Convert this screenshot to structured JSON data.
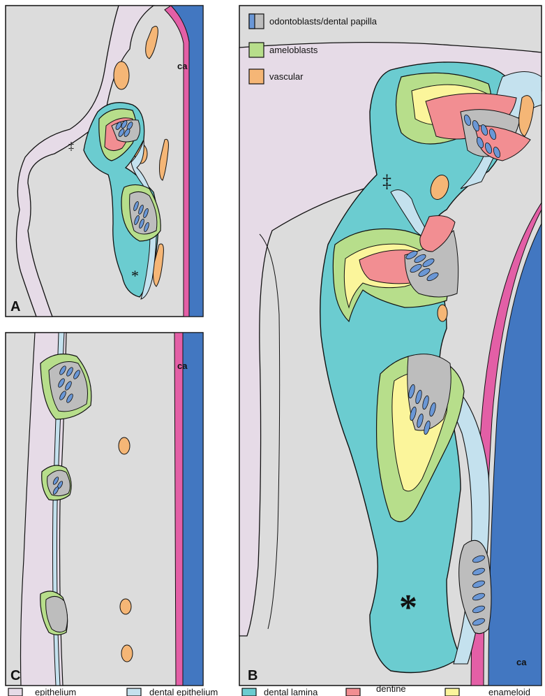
{
  "panels": {
    "a": {
      "label": "A",
      "ca": "ca",
      "dagger": "‡",
      "star": "*"
    },
    "b": {
      "label": "B",
      "ca": "ca",
      "dagger": "‡",
      "star": "*"
    },
    "c": {
      "label": "C",
      "ca": "ca"
    }
  },
  "legend_top": [
    {
      "label": "odontoblasts/dental papilla"
    },
    {
      "label": "ameloblasts"
    },
    {
      "label": "vascular"
    }
  ],
  "legend_bottom": [
    {
      "label": "epithelium"
    },
    {
      "label": "dental epithelium"
    },
    {
      "label": "dental lamina"
    },
    {
      "label": "dentine"
    },
    {
      "label": "enameloid"
    }
  ],
  "colors": {
    "epithelium": "#e6dbe7",
    "dental_epithelium": "#c4e1ee",
    "dental_lamina": "#6bccd0",
    "dentine": "#f28e92",
    "enameloid": "#fbf59b",
    "ameloblasts": "#b7de8b",
    "vascular": "#f5b676",
    "papilla": "#bdbdbd",
    "odontoblast": "#6a97d6",
    "background": "#dcdcdc",
    "pink_band": "#e35fa6",
    "cartilage": "#4277c1"
  }
}
